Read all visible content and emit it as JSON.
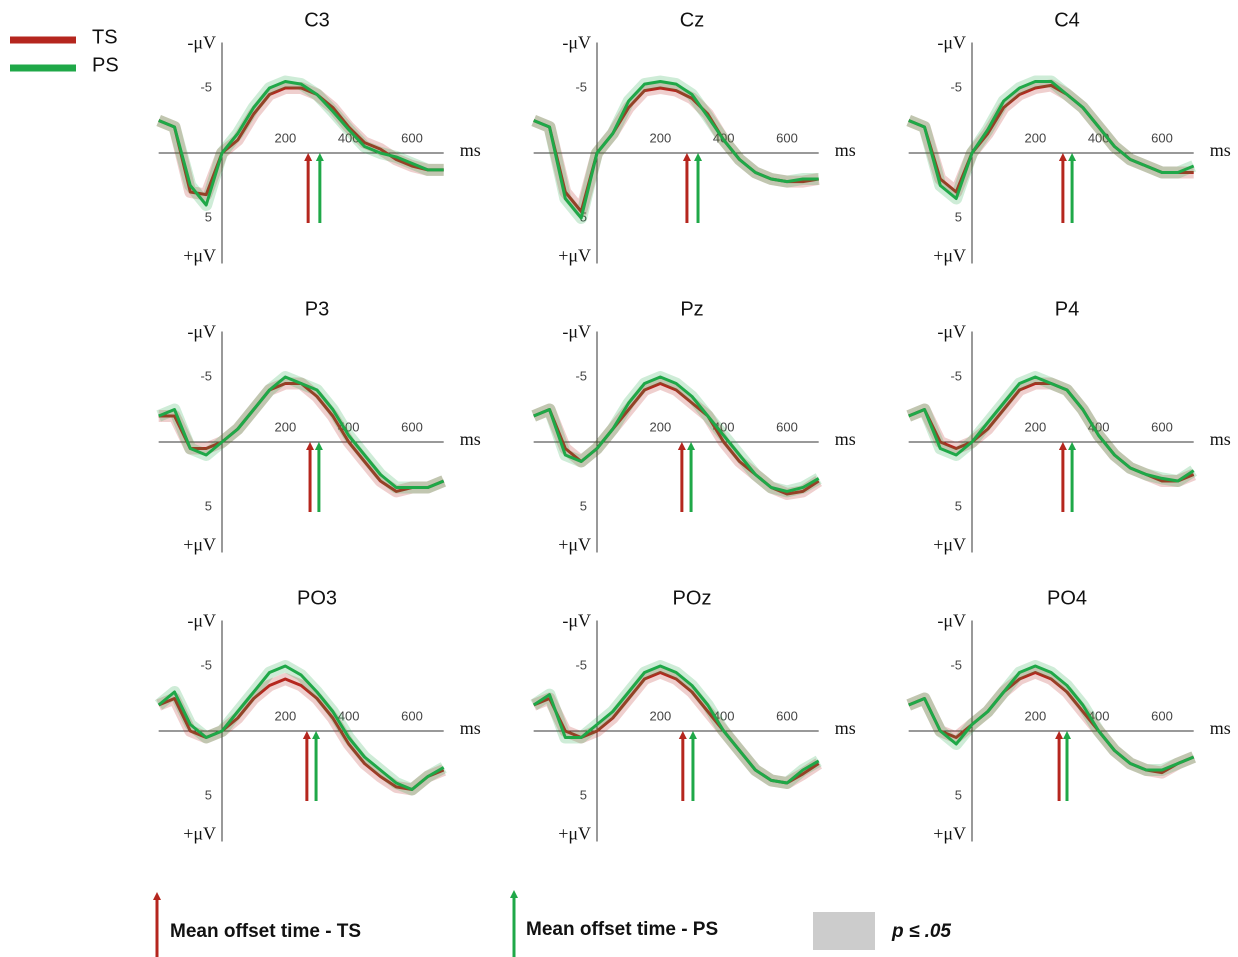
{
  "chart_data": [
    {
      "type": "line",
      "title": "C3",
      "x_label": "ms",
      "y_top_label": "-μV",
      "y_bottom_label": "+μV",
      "y_inverted": true,
      "x": [
        -200,
        -150,
        -100,
        -50,
        0,
        50,
        100,
        150,
        200,
        250,
        300,
        350,
        400,
        450,
        500,
        550,
        600,
        650,
        700
      ],
      "xlim": [
        -200,
        700
      ],
      "xticks": [
        200,
        400,
        600
      ],
      "ylim": [
        -8.5,
        8.5
      ],
      "yticks": [
        -5,
        5
      ],
      "series": [
        {
          "name": "TS",
          "color": "#b5261e",
          "offset_time": 272,
          "values": [
            -2.5,
            -2,
            3,
            3.2,
            0,
            -1,
            -3,
            -4.5,
            -5,
            -5,
            -4.5,
            -3.5,
            -2,
            -0.8,
            -0.3,
            0.5,
            1,
            1.3,
            1.3
          ]
        },
        {
          "name": "PS",
          "color": "#1fa848",
          "offset_time": 309,
          "values": [
            -2.5,
            -2,
            2.5,
            4,
            0,
            -1.5,
            -3.5,
            -5,
            -5.5,
            -5.3,
            -4.5,
            -3.2,
            -1.8,
            -0.5,
            0,
            0.3,
            0.8,
            1.3,
            1.3
          ]
        }
      ]
    },
    {
      "type": "line",
      "title": "Cz",
      "x_label": "ms",
      "y_top_label": "-μV",
      "y_bottom_label": "+μV",
      "y_inverted": true,
      "x": [
        -200,
        -150,
        -100,
        -50,
        0,
        50,
        100,
        150,
        200,
        250,
        300,
        350,
        400,
        450,
        500,
        550,
        600,
        650,
        700
      ],
      "xlim": [
        -200,
        700
      ],
      "xticks": [
        200,
        400,
        600
      ],
      "ylim": [
        -8.5,
        8.5
      ],
      "yticks": [
        -5,
        5
      ],
      "series": [
        {
          "name": "TS",
          "color": "#b5261e",
          "offset_time": 284,
          "values": [
            -2.5,
            -2,
            3,
            4.5,
            0,
            -1.5,
            -3.5,
            -4.8,
            -5,
            -4.8,
            -4.2,
            -3,
            -1,
            0.5,
            1.5,
            2,
            2.2,
            2.2,
            2
          ]
        },
        {
          "name": "PS",
          "color": "#1fa848",
          "offset_time": 319,
          "values": [
            -2.5,
            -2,
            3.5,
            5,
            0,
            -1.5,
            -4,
            -5.3,
            -5.5,
            -5.3,
            -4.5,
            -2.8,
            -1,
            0.5,
            1.5,
            2,
            2.2,
            2,
            2
          ]
        }
      ]
    },
    {
      "type": "line",
      "title": "C4",
      "x_label": "ms",
      "y_top_label": "-μV",
      "y_bottom_label": "+μV",
      "y_inverted": true,
      "x": [
        -200,
        -150,
        -100,
        -50,
        0,
        50,
        100,
        150,
        200,
        250,
        300,
        350,
        400,
        450,
        500,
        550,
        600,
        650,
        700
      ],
      "xlim": [
        -200,
        700
      ],
      "xticks": [
        200,
        400,
        600
      ],
      "ylim": [
        -8.5,
        8.5
      ],
      "yticks": [
        -5,
        5
      ],
      "series": [
        {
          "name": "TS",
          "color": "#b5261e",
          "offset_time": 287,
          "values": [
            -2.5,
            -2,
            2,
            3,
            0,
            -1.5,
            -3.5,
            -4.5,
            -5,
            -5.2,
            -4.5,
            -3.5,
            -2,
            -0.5,
            0.5,
            1,
            1.5,
            1.5,
            1.5
          ]
        },
        {
          "name": "PS",
          "color": "#1fa848",
          "offset_time": 316,
          "values": [
            -2.5,
            -2,
            2.5,
            3.5,
            0,
            -1.8,
            -4,
            -5,
            -5.5,
            -5.5,
            -4.5,
            -3.5,
            -2,
            -0.5,
            0.5,
            1,
            1.5,
            1.5,
            1
          ]
        }
      ]
    },
    {
      "type": "line",
      "title": "P3",
      "x_label": "ms",
      "y_top_label": "-μV",
      "y_bottom_label": "+μV",
      "y_inverted": true,
      "x": [
        -200,
        -150,
        -100,
        -50,
        0,
        50,
        100,
        150,
        200,
        250,
        300,
        350,
        400,
        450,
        500,
        550,
        600,
        650,
        700
      ],
      "xlim": [
        -200,
        700
      ],
      "xticks": [
        200,
        400,
        600
      ],
      "ylim": [
        -8.5,
        8.5
      ],
      "yticks": [
        -5,
        5
      ],
      "series": [
        {
          "name": "TS",
          "color": "#b5261e",
          "offset_time": 278,
          "values": [
            -2,
            -2,
            0.5,
            0.5,
            0,
            -1,
            -2.5,
            -4,
            -4.5,
            -4.5,
            -3.5,
            -2,
            0,
            1.5,
            3,
            3.8,
            3.5,
            3.5,
            3
          ]
        },
        {
          "name": "PS",
          "color": "#1fa848",
          "offset_time": 306,
          "values": [
            -2,
            -2.5,
            0.5,
            1,
            0,
            -1,
            -2.5,
            -4,
            -5,
            -4.5,
            -4,
            -2.5,
            -0.5,
            1,
            2.5,
            3.5,
            3.5,
            3.5,
            3
          ]
        }
      ]
    },
    {
      "type": "line",
      "title": "Pz",
      "x_label": "ms",
      "y_top_label": "-μV",
      "y_bottom_label": "+μV",
      "y_inverted": true,
      "x": [
        -200,
        -150,
        -100,
        -50,
        0,
        50,
        100,
        150,
        200,
        250,
        300,
        350,
        400,
        450,
        500,
        550,
        600,
        650,
        700
      ],
      "xlim": [
        -200,
        700
      ],
      "xticks": [
        200,
        400,
        600
      ],
      "ylim": [
        -8.5,
        8.5
      ],
      "yticks": [
        -5,
        5
      ],
      "series": [
        {
          "name": "TS",
          "color": "#b5261e",
          "offset_time": 268,
          "values": [
            -2,
            -2.5,
            0.5,
            1.5,
            0.5,
            -1,
            -2.5,
            -4,
            -4.5,
            -4,
            -3,
            -2,
            0,
            1.5,
            2.5,
            3.5,
            4,
            3.8,
            3
          ]
        },
        {
          "name": "PS",
          "color": "#1fa848",
          "offset_time": 297,
          "values": [
            -2,
            -2.5,
            1,
            1.5,
            0.5,
            -1,
            -3,
            -4.5,
            -5,
            -4.5,
            -3.5,
            -2,
            -0.5,
            1,
            2.5,
            3.5,
            3.8,
            3.5,
            2.8
          ]
        }
      ]
    },
    {
      "type": "line",
      "title": "P4",
      "x_label": "ms",
      "y_top_label": "-μV",
      "y_bottom_label": "+μV",
      "y_inverted": true,
      "x": [
        -200,
        -150,
        -100,
        -50,
        0,
        50,
        100,
        150,
        200,
        250,
        300,
        350,
        400,
        450,
        500,
        550,
        600,
        650,
        700
      ],
      "xlim": [
        -200,
        700
      ],
      "xticks": [
        200,
        400,
        600
      ],
      "ylim": [
        -8.5,
        8.5
      ],
      "yticks": [
        -5,
        5
      ],
      "series": [
        {
          "name": "TS",
          "color": "#b5261e",
          "offset_time": 287,
          "values": [
            -2,
            -2.5,
            0,
            0.5,
            0,
            -1,
            -2.5,
            -4,
            -4.5,
            -4.5,
            -4,
            -2.5,
            -0.5,
            1,
            2,
            2.5,
            3,
            3,
            2.5
          ]
        },
        {
          "name": "PS",
          "color": "#1fa848",
          "offset_time": 316,
          "values": [
            -2,
            -2.5,
            0.5,
            1,
            0,
            -1.5,
            -3,
            -4.5,
            -5,
            -4.5,
            -4,
            -2.5,
            -0.5,
            1,
            2,
            2.5,
            2.8,
            3,
            2.2
          ]
        }
      ]
    },
    {
      "type": "line",
      "title": "PO3",
      "x_label": "ms",
      "y_top_label": "-μV",
      "y_bottom_label": "+μV",
      "y_inverted": true,
      "x": [
        -200,
        -150,
        -100,
        -50,
        0,
        50,
        100,
        150,
        200,
        250,
        300,
        350,
        400,
        450,
        500,
        550,
        600,
        650,
        700
      ],
      "xlim": [
        -200,
        700
      ],
      "xticks": [
        200,
        400,
        600
      ],
      "ylim": [
        -8.5,
        8.5
      ],
      "yticks": [
        -5,
        5
      ],
      "series": [
        {
          "name": "TS",
          "color": "#b5261e",
          "offset_time": 268,
          "values": [
            -2,
            -2.5,
            0,
            0.5,
            0,
            -1,
            -2.5,
            -3.5,
            -4,
            -3.5,
            -2.5,
            -1,
            1,
            2.5,
            3.5,
            4.3,
            4.5,
            3.5,
            3
          ]
        },
        {
          "name": "PS",
          "color": "#1fa848",
          "offset_time": 297,
          "values": [
            -2,
            -3,
            -0.5,
            0.5,
            0,
            -1.5,
            -3,
            -4.5,
            -5,
            -4.3,
            -3,
            -1.5,
            0.5,
            2,
            3,
            4,
            4.5,
            3.5,
            2.8
          ]
        }
      ]
    },
    {
      "type": "line",
      "title": "POz",
      "x_label": "ms",
      "y_top_label": "-μV",
      "y_bottom_label": "+μV",
      "y_inverted": true,
      "x": [
        -200,
        -150,
        -100,
        -50,
        0,
        50,
        100,
        150,
        200,
        250,
        300,
        350,
        400,
        450,
        500,
        550,
        600,
        650,
        700
      ],
      "xlim": [
        -200,
        700
      ],
      "xticks": [
        200,
        400,
        600
      ],
      "ylim": [
        -8.5,
        8.5
      ],
      "yticks": [
        -5,
        5
      ],
      "series": [
        {
          "name": "TS",
          "color": "#b5261e",
          "offset_time": 271,
          "values": [
            -2,
            -2.5,
            0,
            0.5,
            0,
            -1,
            -2.5,
            -4,
            -4.5,
            -4,
            -3,
            -1.5,
            0,
            1.5,
            3,
            3.8,
            4,
            3.3,
            2.5
          ]
        },
        {
          "name": "PS",
          "color": "#1fa848",
          "offset_time": 303,
          "values": [
            -2,
            -2.8,
            0.5,
            0.5,
            -0.5,
            -1.5,
            -3,
            -4.5,
            -5,
            -4.5,
            -3.5,
            -2,
            0,
            1.5,
            3,
            3.8,
            4,
            3,
            2.3
          ]
        }
      ]
    },
    {
      "type": "line",
      "title": "PO4",
      "x_label": "ms",
      "y_top_label": "-μV",
      "y_bottom_label": "+μV",
      "y_inverted": true,
      "x": [
        -200,
        -150,
        -100,
        -50,
        0,
        50,
        100,
        150,
        200,
        250,
        300,
        350,
        400,
        450,
        500,
        550,
        600,
        650,
        700
      ],
      "xlim": [
        -200,
        700
      ],
      "xticks": [
        200,
        400,
        600
      ],
      "ylim": [
        -8.5,
        8.5
      ],
      "yticks": [
        -5,
        5
      ],
      "series": [
        {
          "name": "TS",
          "color": "#b5261e",
          "offset_time": 275,
          "values": [
            -2,
            -2.5,
            0,
            0.5,
            -0.5,
            -1.5,
            -3,
            -4,
            -4.5,
            -4,
            -3,
            -1.5,
            0,
            1.5,
            2.5,
            3,
            3.2,
            2.5,
            2
          ]
        },
        {
          "name": "PS",
          "color": "#1fa848",
          "offset_time": 300,
          "values": [
            -2,
            -2.5,
            0,
            1,
            -0.5,
            -1.5,
            -3,
            -4.5,
            -5,
            -4.5,
            -3.5,
            -2,
            0,
            1.5,
            2.5,
            3,
            3,
            2.5,
            2
          ]
        }
      ]
    }
  ],
  "footer_legend": [
    {
      "label": "Mean offset time - TS",
      "color": "#b5261e"
    },
    {
      "label": "Mean offset time - PS",
      "color": "#1fa848"
    },
    {
      "label": "p ≤ .05",
      "color": "#cccccc"
    }
  ]
}
